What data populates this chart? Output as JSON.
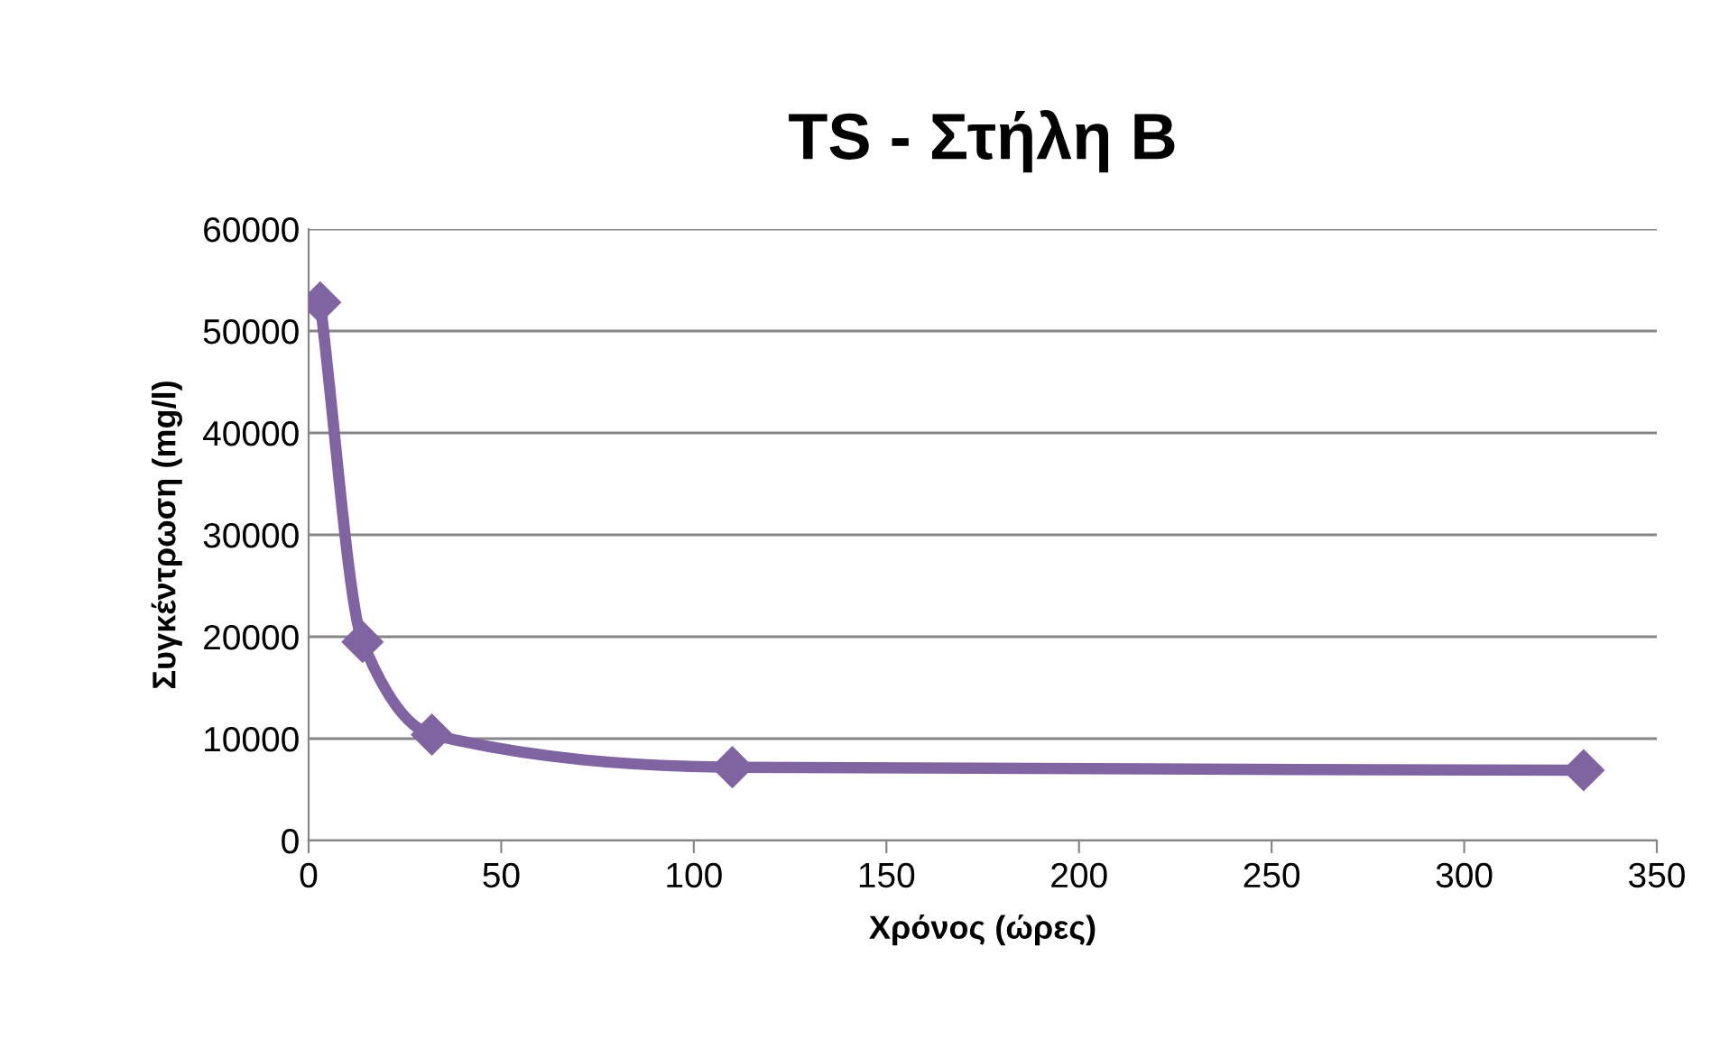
{
  "chart_data": {
    "type": "line",
    "title": "TS - Στήλη B",
    "xlabel": "Χρόνος (ώρες)",
    "ylabel": "Συγκέντρωση (mg/l)",
    "x": [
      3,
      14,
      32,
      110,
      331
    ],
    "series": [
      {
        "color": "#8064a2",
        "values": [
          52800,
          19500,
          10400,
          7200,
          6900
        ]
      }
    ],
    "xlim": [
      0,
      350
    ],
    "xticks": [
      0,
      50,
      100,
      150,
      200,
      250,
      300,
      350
    ],
    "ylim": [
      0,
      60000
    ],
    "yticks": [
      0,
      10000,
      20000,
      30000,
      40000,
      50000,
      60000
    ],
    "grid": "y",
    "marker": "diamond",
    "line_style": "solid",
    "legend": false
  }
}
